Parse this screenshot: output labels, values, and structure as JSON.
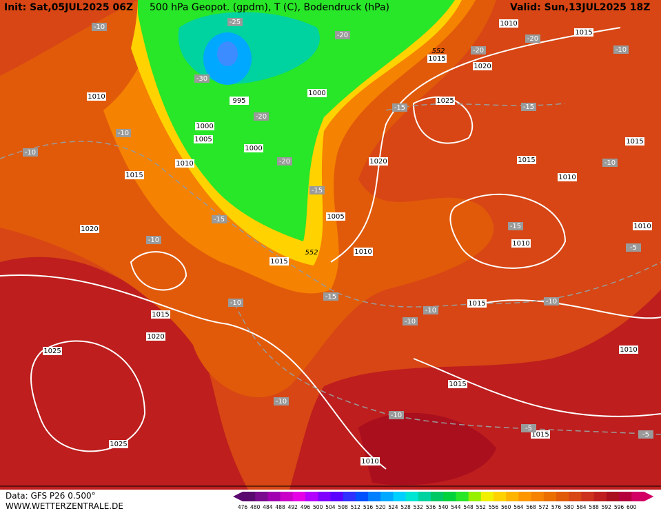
{
  "header": {
    "init": "Init: Sat,05JUL2025 06Z",
    "title": "500 hPa Geopot. (gpdm), T (C), Bodendruck (hPa)",
    "valid": "Valid: Sun,13JUL2025 18Z"
  },
  "isobar_labels": [
    "1010",
    "1015",
    "1015",
    "1020",
    "1010",
    "995",
    "1000",
    "1025",
    "1000",
    "1005",
    "1000",
    "1010",
    "1015",
    "1020",
    "1015",
    "1015",
    "1010",
    "1005",
    "1020",
    "1010",
    "1010",
    "1015",
    "1010",
    "1015",
    "1015",
    "1020",
    "1010",
    "1025",
    "1015",
    "1015",
    "1025",
    "1010"
  ],
  "temperature_labels": [
    "-10",
    "-25",
    "-20",
    "-20",
    "-20",
    "-10",
    "-30",
    "-15",
    "-15",
    "-20",
    "-10",
    "-10",
    "-20",
    "-10",
    "-15",
    "-15",
    "-15",
    "-10",
    "-5",
    "-10",
    "-15",
    "-10",
    "-10",
    "-10",
    "-10",
    "-10",
    "-5",
    "-5"
  ],
  "contour_552_labels": [
    "552",
    "552"
  ],
  "colorbar": {
    "labels": [
      "476",
      "480",
      "484",
      "488",
      "492",
      "496",
      "500",
      "504",
      "508",
      "512",
      "516",
      "520",
      "524",
      "528",
      "532",
      "536",
      "540",
      "544",
      "548",
      "552",
      "556",
      "560",
      "564",
      "568",
      "572",
      "576",
      "580",
      "584",
      "588",
      "592",
      "596",
      "600"
    ],
    "colors": [
      "#5a0a6e",
      "#7a0a8e",
      "#a000b0",
      "#c800c8",
      "#e600e6",
      "#b400ff",
      "#8000ff",
      "#5a00ff",
      "#3030ff",
      "#0050ff",
      "#0080ff",
      "#00a8ff",
      "#00d0ff",
      "#00e6d2",
      "#00d2a0",
      "#00c864",
      "#00d23c",
      "#28e628",
      "#96f000",
      "#f0f000",
      "#ffd200",
      "#ffb400",
      "#ff9600",
      "#f58200",
      "#eb6e00",
      "#e15a0a",
      "#d74614",
      "#cd321e",
      "#be1e1e",
      "#aa0f1e",
      "#b4003c",
      "#d20064"
    ]
  },
  "footer": {
    "data": "Data: GFS P26 0.500°",
    "site": "WWW.WETTERZENTRALE.DE"
  }
}
